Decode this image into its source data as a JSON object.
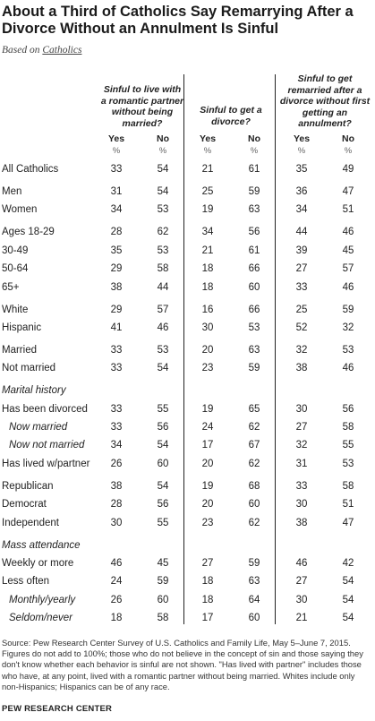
{
  "title": "About a Third of Catholics Say Remarrying After a Divorce Without an Annulment Is Sinful",
  "subtitle_prefix": "Based on",
  "subtitle_link": "Catholics",
  "columns": [
    {
      "header": "Sinful to live with a romantic partner without being married?"
    },
    {
      "header": "Sinful to get a divorce?"
    },
    {
      "header": "Sinful to get remarried after a divorce without first getting an annulment?"
    }
  ],
  "yes_label": "Yes",
  "no_label": "No",
  "pct_label": "%",
  "chart_data": {
    "type": "table",
    "series": [
      {
        "name": "Sinful to live with a romantic partner without being married? Yes"
      },
      {
        "name": "Sinful to live with a romantic partner without being married? No"
      },
      {
        "name": "Sinful to get a divorce? Yes"
      },
      {
        "name": "Sinful to get a divorce? No"
      },
      {
        "name": "Sinful to get remarried after a divorce without first getting an annulment? Yes"
      },
      {
        "name": "Sinful to get remarried after a divorce without first getting an annulment? No"
      }
    ],
    "rows": [
      {
        "label": "All Catholics",
        "values": [
          "33",
          "54",
          "21",
          "61",
          "35",
          "49"
        ]
      },
      {
        "label": "Men",
        "values": [
          "31",
          "54",
          "25",
          "59",
          "36",
          "47"
        ]
      },
      {
        "label": "Women",
        "values": [
          "34",
          "53",
          "19",
          "63",
          "34",
          "51"
        ]
      },
      {
        "label": "Ages 18-29",
        "values": [
          "28",
          "62",
          "34",
          "56",
          "44",
          "46"
        ]
      },
      {
        "label": "30-49",
        "values": [
          "35",
          "53",
          "21",
          "61",
          "39",
          "45"
        ]
      },
      {
        "label": "50-64",
        "values": [
          "29",
          "58",
          "18",
          "66",
          "27",
          "57"
        ]
      },
      {
        "label": "65+",
        "values": [
          "38",
          "44",
          "18",
          "60",
          "33",
          "46"
        ]
      },
      {
        "label": "White",
        "values": [
          "29",
          "57",
          "16",
          "66",
          "25",
          "59"
        ]
      },
      {
        "label": "Hispanic",
        "values": [
          "41",
          "46",
          "30",
          "53",
          "52",
          "32"
        ]
      },
      {
        "label": "Married",
        "values": [
          "33",
          "53",
          "20",
          "63",
          "32",
          "53"
        ]
      },
      {
        "label": "Not married",
        "values": [
          "33",
          "54",
          "23",
          "59",
          "38",
          "46"
        ]
      },
      {
        "label": "Marital history",
        "values": [],
        "section": true
      },
      {
        "label": "Has been divorced",
        "values": [
          "33",
          "55",
          "19",
          "65",
          "30",
          "56"
        ]
      },
      {
        "label": "Now married",
        "values": [
          "33",
          "56",
          "24",
          "62",
          "27",
          "58"
        ],
        "indent": true
      },
      {
        "label": "Now not married",
        "values": [
          "34",
          "54",
          "17",
          "67",
          "32",
          "55"
        ],
        "indent": true
      },
      {
        "label": "Has lived w/partner",
        "values": [
          "26",
          "60",
          "20",
          "62",
          "31",
          "53"
        ]
      },
      {
        "label": "Republican",
        "values": [
          "38",
          "54",
          "19",
          "68",
          "33",
          "58"
        ]
      },
      {
        "label": "Democrat",
        "values": [
          "28",
          "56",
          "20",
          "60",
          "30",
          "51"
        ]
      },
      {
        "label": "Independent",
        "values": [
          "30",
          "55",
          "23",
          "62",
          "38",
          "47"
        ]
      },
      {
        "label": "Mass attendance",
        "values": [],
        "section": true
      },
      {
        "label": "Weekly or more",
        "values": [
          "46",
          "45",
          "27",
          "59",
          "46",
          "42"
        ]
      },
      {
        "label": "Less often",
        "values": [
          "24",
          "59",
          "18",
          "63",
          "27",
          "54"
        ]
      },
      {
        "label": "Monthly/yearly",
        "values": [
          "26",
          "60",
          "18",
          "64",
          "30",
          "54"
        ],
        "indent": true
      },
      {
        "label": "Seldom/never",
        "values": [
          "18",
          "58",
          "17",
          "60",
          "21",
          "54"
        ],
        "indent": true
      }
    ]
  },
  "source": "Source: Pew Research Center Survey of U.S. Catholics and Family Life, May 5–June 7, 2015. Figures do not add to 100%; those who do not believe in the concept of sin and those saying they don't know whether each behavior is sinful are not shown. \"Has lived with partner\" includes those who have, at any point, lived with a romantic partner without being married. Whites include only non-Hispanics; Hispanics can be of any race.",
  "credit": "PEW RESEARCH CENTER"
}
